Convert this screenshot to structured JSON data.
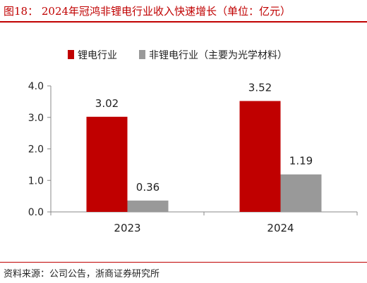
{
  "figure": {
    "title": "图18： 2024年冠鸿非锂电行业收入快速增长（单位：亿元）",
    "source": "资料来源：公司公告，浙商证券研究所"
  },
  "colors": {
    "accent": "#c00000",
    "series_lithium": "#c00000",
    "series_non_lithium": "#999999"
  },
  "chart_data": {
    "type": "bar",
    "categories": [
      "2023",
      "2024"
    ],
    "series": [
      {
        "name": "锂电行业",
        "values": [
          3.02,
          3.52
        ],
        "labels": [
          "3.02",
          "3.52"
        ]
      },
      {
        "name": "非锂电行业（主要为光学材料）",
        "values": [
          0.36,
          1.19
        ],
        "labels": [
          "0.36",
          "1.19"
        ]
      }
    ],
    "ylim": [
      0,
      4.0
    ],
    "yticks": [
      "0.0",
      "1.0",
      "2.0",
      "3.0",
      "4.0"
    ],
    "xlabel": "",
    "ylabel": "",
    "grid": false,
    "legend_position": "top"
  }
}
